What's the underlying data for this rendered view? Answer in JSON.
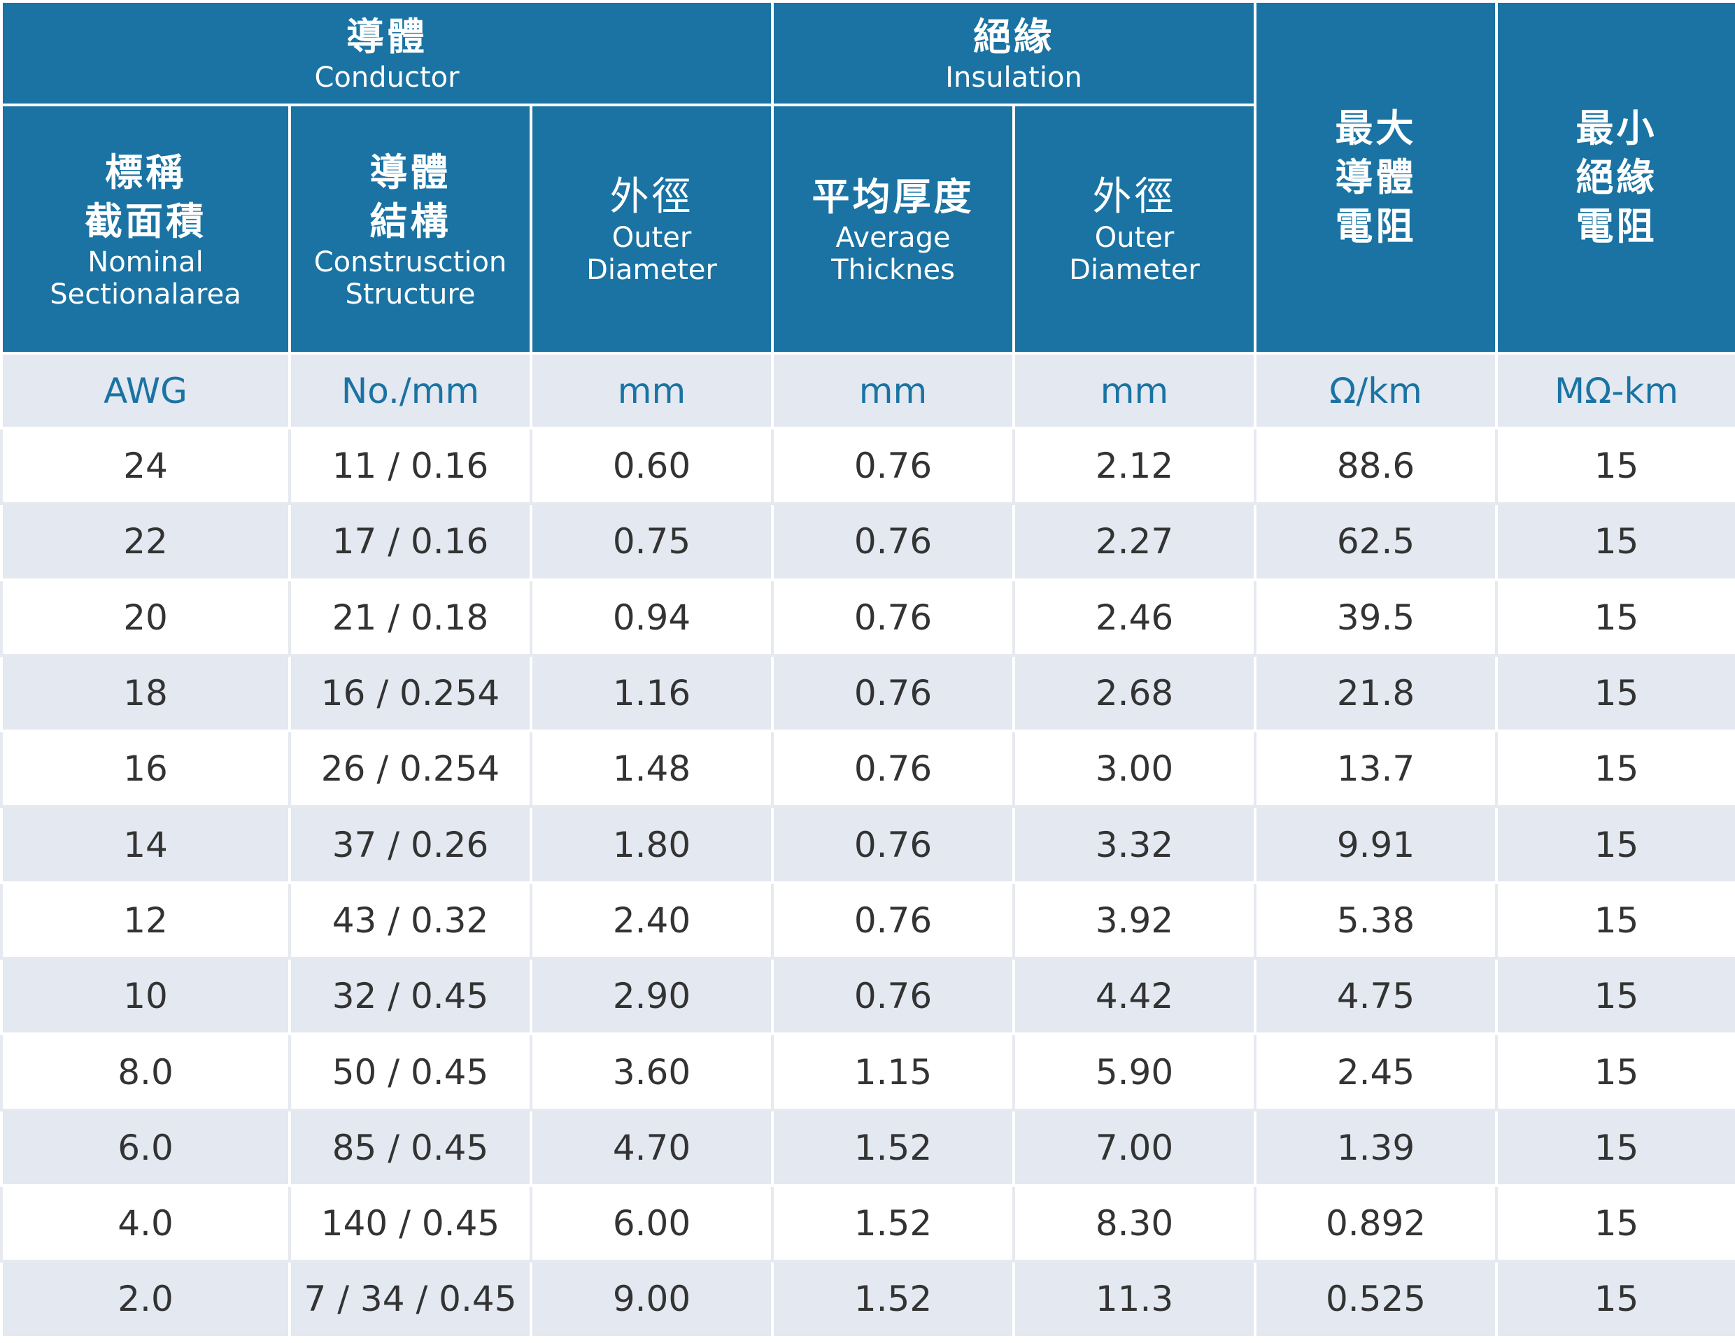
{
  "header": {
    "conductor": {
      "zh": "導體",
      "en": "Conductor"
    },
    "insulation": {
      "zh": "絕緣",
      "en": "Insulation"
    },
    "max_resistance": {
      "zh": [
        "最大",
        "導體",
        "電阻"
      ]
    },
    "min_insulation_resistance": {
      "zh": [
        "最小",
        "絕緣",
        "電阻"
      ]
    },
    "nominal_area": {
      "zh": [
        "標稱",
        "截面積"
      ],
      "en": [
        "Nominal",
        "Sectionalarea"
      ]
    },
    "construction": {
      "zh": [
        "導體",
        "結構"
      ],
      "en": [
        "Construsction",
        "Structure"
      ]
    },
    "conductor_outer": {
      "zh": "外徑",
      "en": [
        "Outer",
        "Diameter"
      ]
    },
    "avg_thickness": {
      "zh": "平均厚度",
      "en": [
        "Average",
        "Thicknes"
      ]
    },
    "insulation_outer": {
      "zh": "外徑",
      "en": [
        "Outer",
        "Diameter"
      ]
    }
  },
  "units": [
    "AWG",
    "No./mm",
    "mm",
    "mm",
    "mm",
    "Ω/km",
    "MΩ-km"
  ],
  "rows": [
    [
      "24",
      "11 / 0.16",
      "0.60",
      "0.76",
      "2.12",
      "88.6",
      "15"
    ],
    [
      "22",
      "17 / 0.16",
      "0.75",
      "0.76",
      "2.27",
      "62.5",
      "15"
    ],
    [
      "20",
      "21 / 0.18",
      "0.94",
      "0.76",
      "2.46",
      "39.5",
      "15"
    ],
    [
      "18",
      "16 / 0.254",
      "1.16",
      "0.76",
      "2.68",
      "21.8",
      "15"
    ],
    [
      "16",
      "26 / 0.254",
      "1.48",
      "0.76",
      "3.00",
      "13.7",
      "15"
    ],
    [
      "14",
      "37 / 0.26",
      "1.80",
      "0.76",
      "3.32",
      "9.91",
      "15"
    ],
    [
      "12",
      "43 / 0.32",
      "2.40",
      "0.76",
      "3.92",
      "5.38",
      "15"
    ],
    [
      "10",
      "32 / 0.45",
      "2.90",
      "0.76",
      "4.42",
      "4.75",
      "15"
    ],
    [
      "8.0",
      "50 / 0.45",
      "3.60",
      "1.15",
      "5.90",
      "2.45",
      "15"
    ],
    [
      "6.0",
      "85 / 0.45",
      "4.70",
      "1.52",
      "7.00",
      "1.39",
      "15"
    ],
    [
      "4.0",
      "140 / 0.45",
      "6.00",
      "1.52",
      "8.30",
      "0.892",
      "15"
    ],
    [
      "2.0",
      "7 / 34 / 0.45",
      "9.00",
      "1.52",
      "11.3",
      "0.525",
      "15"
    ]
  ],
  "colors": {
    "header_bg": "#1a73a3",
    "header_text": "#ffffff",
    "unit_text": "#1a73a3",
    "stripe_bg": "#e3e8f1",
    "body_text": "#333333"
  }
}
